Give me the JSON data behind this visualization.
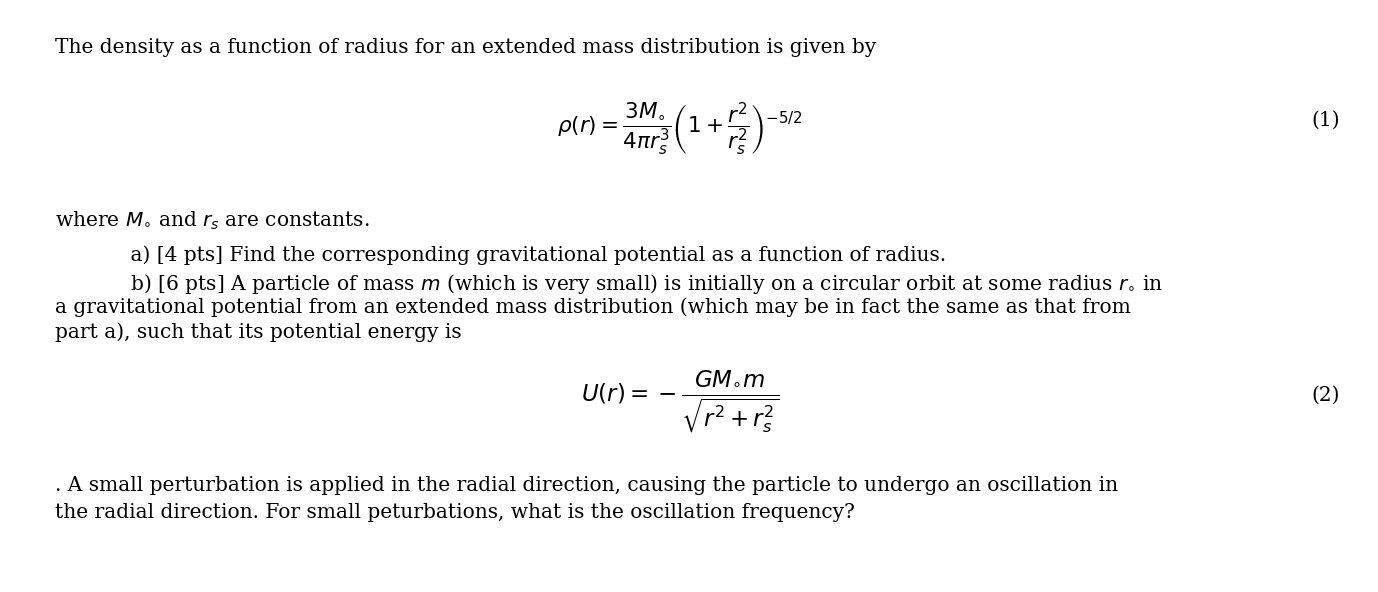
{
  "background_color": "#ffffff",
  "text_color": "#000000",
  "figsize": [
    13.78,
    5.92
  ],
  "dpi": 100,
  "line1": "The density as a function of radius for an extended mass distribution is given by",
  "eq1_label": "(1)",
  "eq1": "$\\rho(r) = \\dfrac{3M_{\\circ}}{4\\pi r_s^3}\\left(1 + \\dfrac{r^2}{r_s^2}\\right)^{-5/2}$",
  "line_where": "where $M_{\\circ}$ and $r_s$ are constants.",
  "line_a": "    a) [4 pts] Find the corresponding gravitational potential as a function of radius.",
  "line_b": "    b) [6 pts] A particle of mass $m$ (which is very small) is initially on a circular orbit at some radius $r_{\\circ}$ in",
  "line_b2": "a gravitational potential from an extended mass distribution (which may be in fact the same as that from",
  "line_b3": "part a), such that its potential energy is",
  "eq2": "$U(r) = -\\dfrac{GM_{\\circ}m}{\\sqrt{r^2 + r_s^2}}$",
  "eq2_label": "(2)",
  "line_c": ". A small perturbation is applied in the radial direction, causing the particle to undergo an oscillation in",
  "line_c2": "the radial direction. For small peturbations, what is the oscillation frequency?"
}
